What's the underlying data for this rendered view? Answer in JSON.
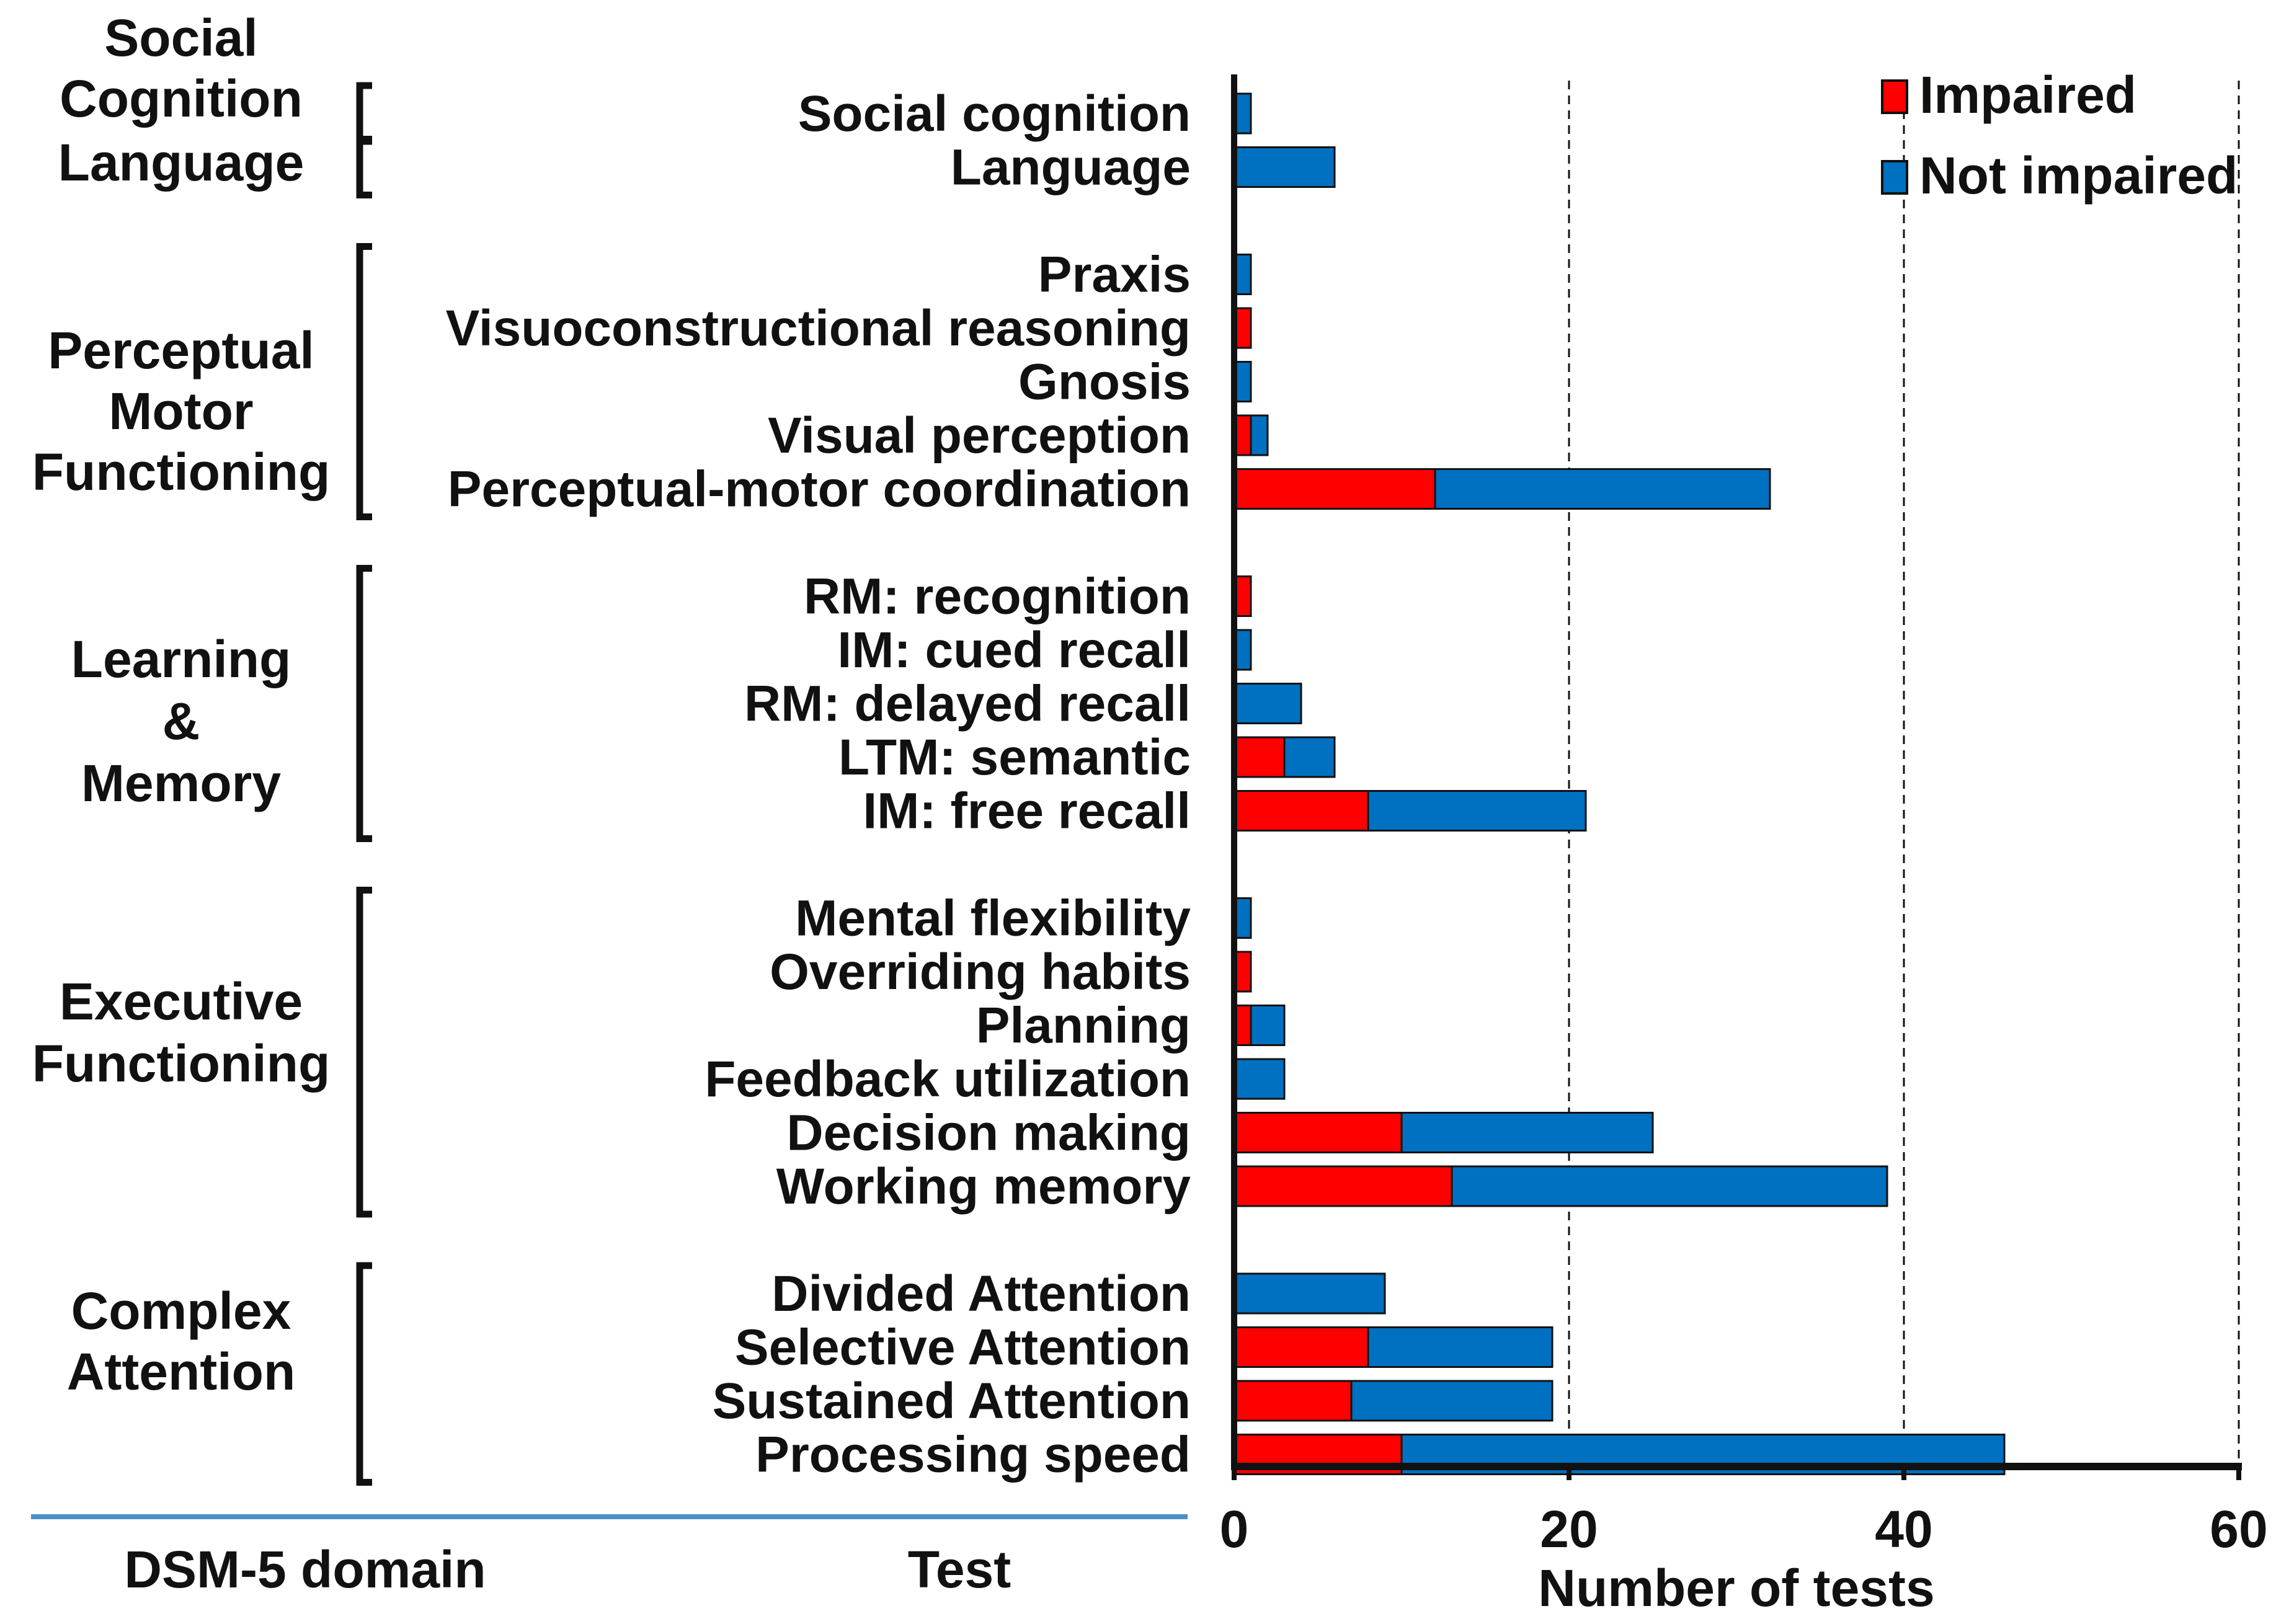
{
  "chart_data": {
    "type": "bar",
    "orientation": "horizontal",
    "stacked": true,
    "xlabel": "Number of tests",
    "xlim": [
      0,
      60
    ],
    "xticks": [
      0,
      20,
      40,
      60
    ],
    "gridlines": "dashed vertical at 20, 40, 60",
    "legend_position": "top-right",
    "columns": {
      "domain": "DSM-5 domain",
      "test": "Test"
    },
    "series": [
      {
        "name": "Impaired",
        "color": "#ff0000"
      },
      {
        "name": "Not impaired",
        "color": "#0070c0"
      }
    ],
    "domains": [
      {
        "label": [
          "Social",
          "Cognition"
        ],
        "tests": [
          {
            "name": "Social cognition",
            "impaired": 0,
            "not_impaired": 1
          }
        ]
      },
      {
        "label": [
          "Language"
        ],
        "tests": [
          {
            "name": "Language",
            "impaired": 0,
            "not_impaired": 6
          }
        ]
      },
      {
        "label": [
          "Perceptual",
          "Motor",
          "Functioning"
        ],
        "tests": [
          {
            "name": "Praxis",
            "impaired": 0,
            "not_impaired": 1
          },
          {
            "name": "Visuoconstructional reasoning",
            "impaired": 1,
            "not_impaired": 0
          },
          {
            "name": "Gnosis",
            "impaired": 0,
            "not_impaired": 1
          },
          {
            "name": "Visual perception",
            "impaired": 1,
            "not_impaired": 1
          },
          {
            "name": "Perceptual-motor coordination",
            "impaired": 12,
            "not_impaired": 20
          }
        ]
      },
      {
        "label": [
          "Learning",
          "&",
          "Memory"
        ],
        "tests": [
          {
            "name": "RM: recognition",
            "impaired": 1,
            "not_impaired": 0
          },
          {
            "name": "IM: cued recall",
            "impaired": 0,
            "not_impaired": 1
          },
          {
            "name": "RM: delayed recall",
            "impaired": 0,
            "not_impaired": 4
          },
          {
            "name": "LTM: semantic",
            "impaired": 3,
            "not_impaired": 3
          },
          {
            "name": "IM: free recall",
            "impaired": 8,
            "not_impaired": 13
          }
        ]
      },
      {
        "label": [
          "Executive",
          "Functioning"
        ],
        "tests": [
          {
            "name": "Mental flexibility",
            "impaired": 0,
            "not_impaired": 1
          },
          {
            "name": "Overriding habits",
            "impaired": 1,
            "not_impaired": 0
          },
          {
            "name": "Planning",
            "impaired": 1,
            "not_impaired": 2
          },
          {
            "name": "Feedback utilization",
            "impaired": 0,
            "not_impaired": 3
          },
          {
            "name": "Decision making",
            "impaired": 10,
            "not_impaired": 15
          },
          {
            "name": "Working memory",
            "impaired": 13,
            "not_impaired": 26
          }
        ]
      },
      {
        "label": [
          "Complex",
          "Attention"
        ],
        "tests": [
          {
            "name": "Divided Attention",
            "impaired": 0,
            "not_impaired": 9
          },
          {
            "name": "Selective Attention",
            "impaired": 8,
            "not_impaired": 11
          },
          {
            "name": "Sustained Attention",
            "impaired": 7,
            "not_impaired": 12
          },
          {
            "name": "Processing speed",
            "impaired": 10,
            "not_impaired": 36
          }
        ]
      }
    ]
  }
}
